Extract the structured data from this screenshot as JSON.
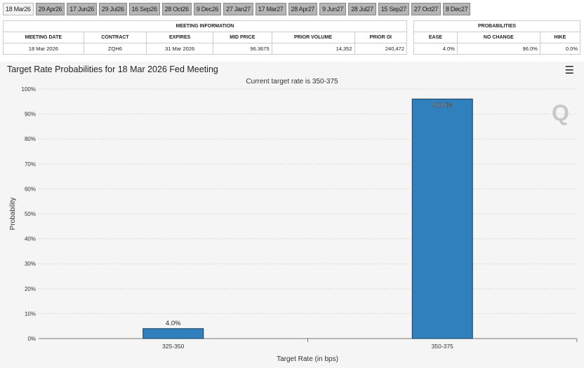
{
  "tabs": [
    "18 Mar26",
    "29 Apr26",
    "17 Jun26",
    "29 Jul26",
    "16 Sep26",
    "28 Oct26",
    "9 Dec26",
    "27 Jan27",
    "17 Mar27",
    "28 Apr27",
    "9 Jun27",
    "28 Jul27",
    "15 Sep27",
    "27 Oct27",
    "8 Dec27"
  ],
  "active_tab": "18 Mar26",
  "meeting_info": {
    "header": "MEETING INFORMATION",
    "columns": [
      "MEETING DATE",
      "CONTRACT",
      "EXPIRES",
      "MID PRICE",
      "PRIOR VOLUME",
      "PRIOR OI"
    ],
    "values": [
      "18 Mar 2026",
      "ZQH6",
      "31 Mar 2026",
      "96.3675",
      "14,352",
      "240,472"
    ]
  },
  "probabilities": {
    "header": "PROBABILITIES",
    "columns": [
      "EASE",
      "NO CHANGE",
      "HIKE"
    ],
    "values": [
      "4.0%",
      "96.0%",
      "0.0%"
    ]
  },
  "chart_title": "Target Rate Probabilities for 18 Mar 2026 Fed Meeting",
  "menu_icon": "hamburger-icon",
  "chart_data": {
    "type": "bar",
    "title": "Current target rate is 350-375",
    "xlabel": "Target Rate (in bps)",
    "ylabel": "Probability",
    "categories": [
      "325-350",
      "350-375"
    ],
    "values": [
      4.0,
      96.0
    ],
    "data_labels": [
      "4.0%",
      "96.0%"
    ],
    "ylim": [
      0,
      100
    ],
    "yticks": [
      "0%",
      "10%",
      "20%",
      "30%",
      "40%",
      "50%",
      "60%",
      "70%",
      "80%",
      "90%",
      "100%"
    ],
    "grid": true,
    "bar_color": "#2f80bd"
  }
}
